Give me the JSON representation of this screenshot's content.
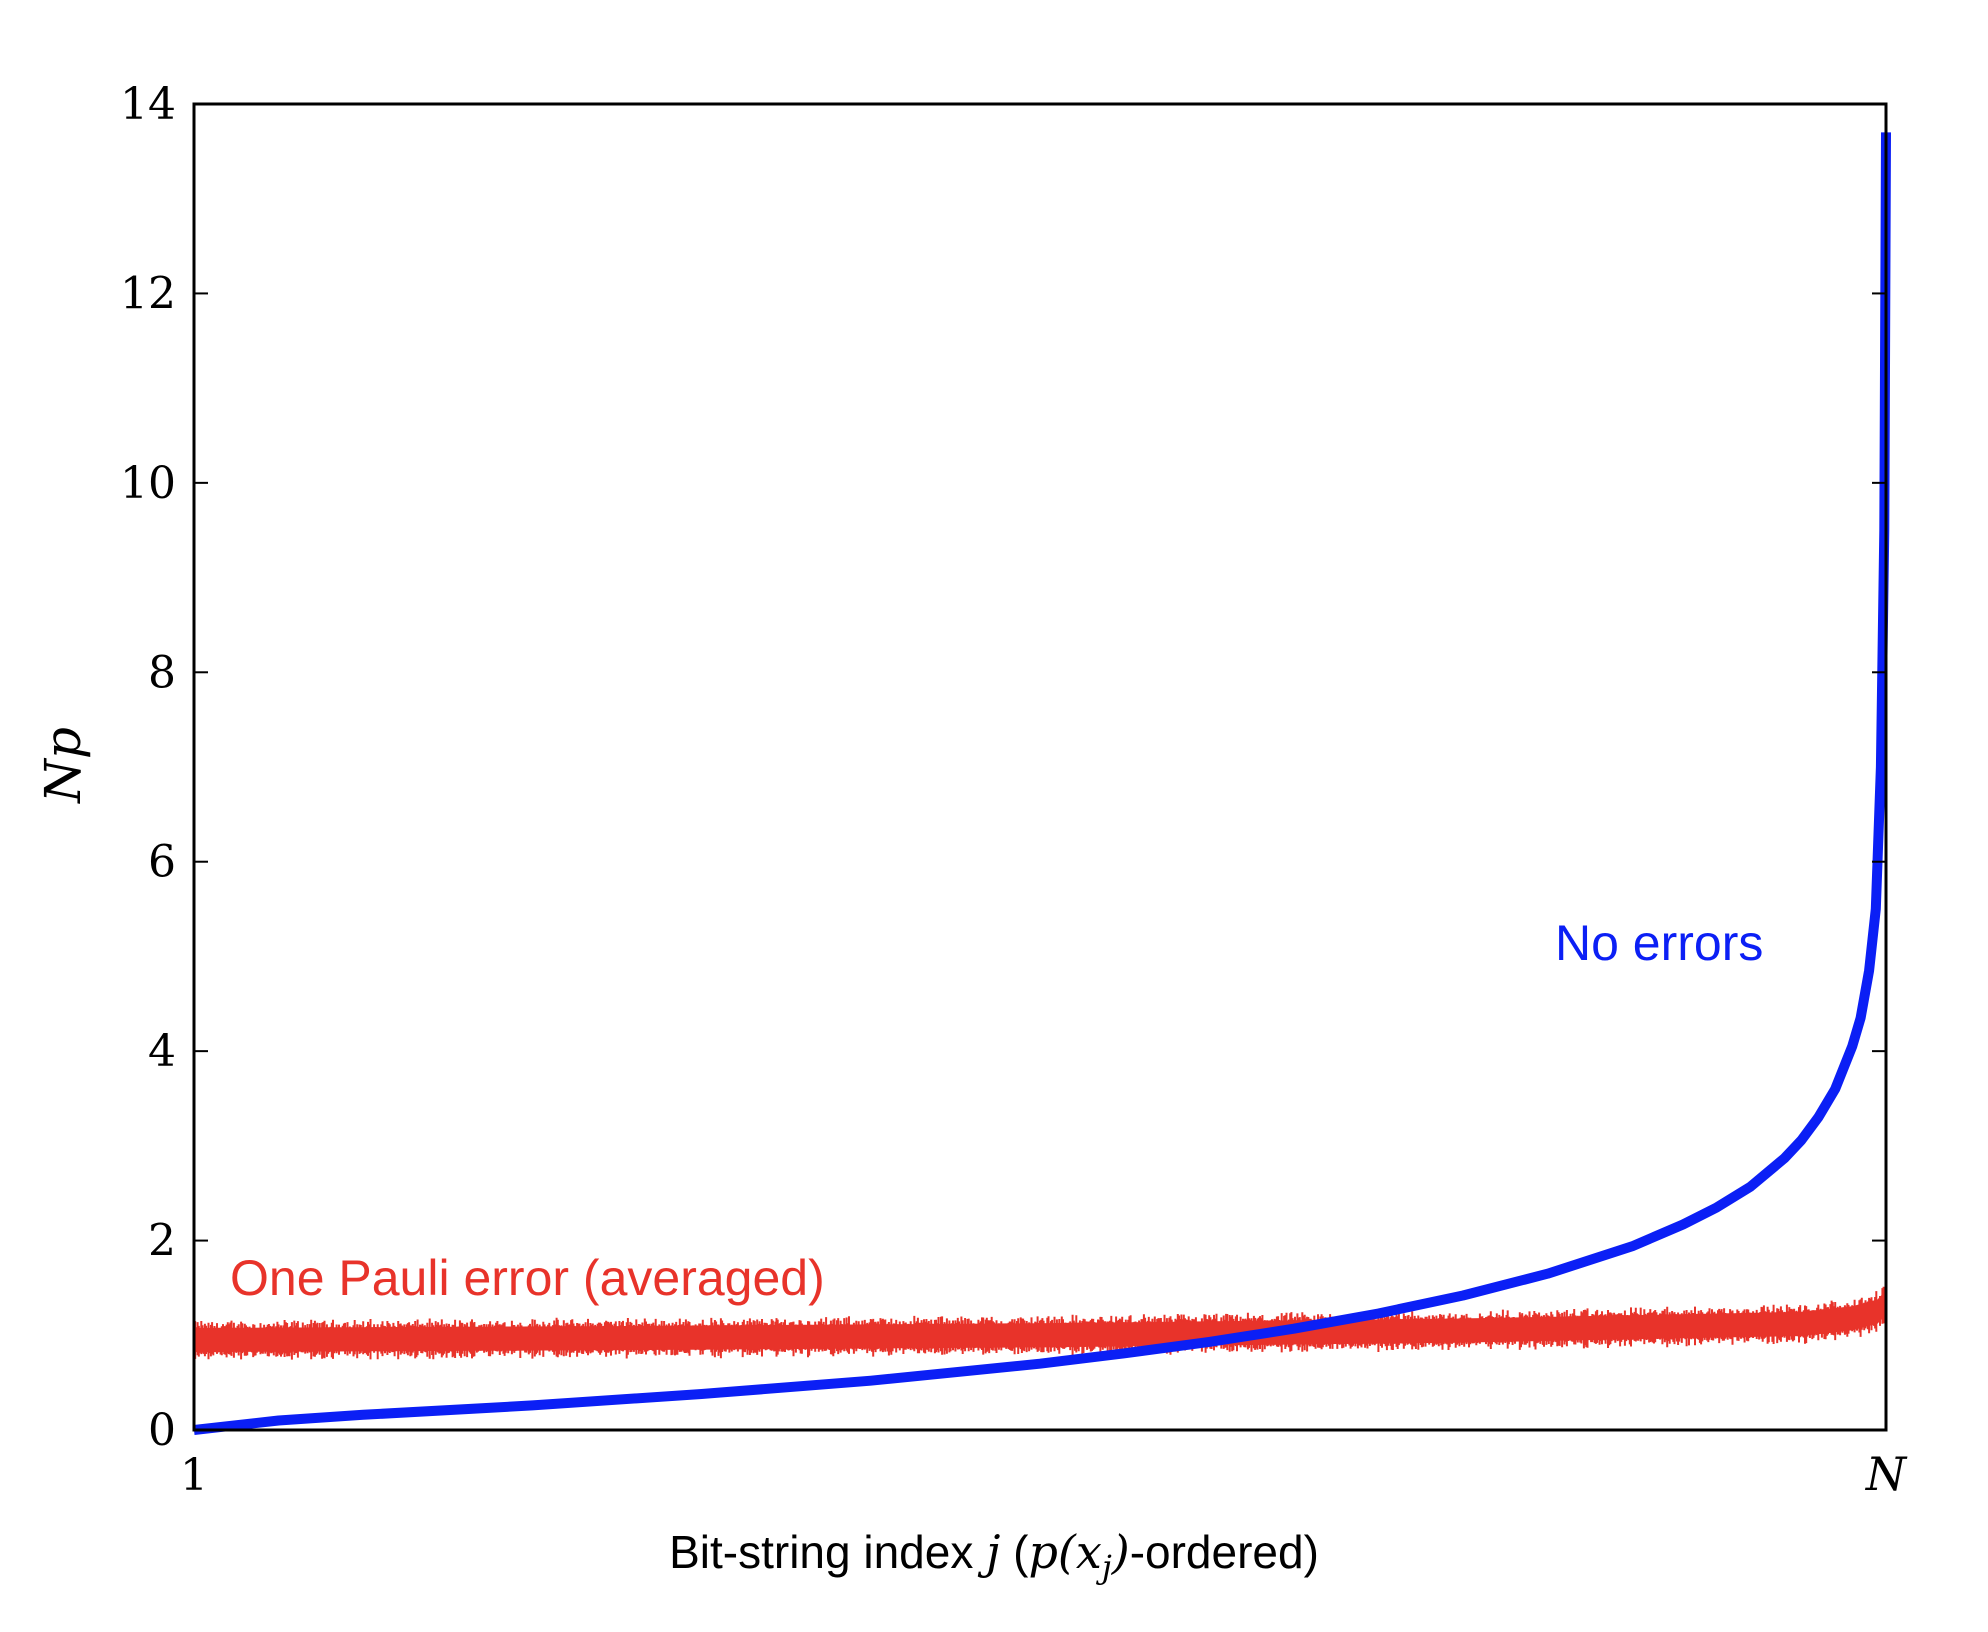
{
  "chart_data": {
    "type": "line",
    "xlabel": {
      "prefix": "Bit-string index ",
      "var": "j",
      "mid": " (",
      "math": "p(x",
      "sub": "j",
      "close": ")",
      "suffix": "-ordered)"
    },
    "ylabel": "Np",
    "xlim": [
      0,
      1
    ],
    "ylim": [
      0,
      14
    ],
    "yticks": [
      0,
      2,
      4,
      6,
      8,
      10,
      12,
      14
    ],
    "xtick_labels": [
      {
        "at": 0,
        "label": "1",
        "italic": false
      },
      {
        "at": 1,
        "label": "N",
        "italic": true
      }
    ],
    "series": [
      {
        "name": "One Pauli error (averaged)",
        "color": "#e8332a",
        "style": "noisy-band",
        "x": [
          0,
          0.25,
          0.5,
          0.75,
          0.95,
          0.98,
          0.995,
          1.0
        ],
        "y": [
          0.95,
          0.97,
          1.0,
          1.05,
          1.12,
          1.18,
          1.25,
          1.35
        ],
        "spread": 0.17
      },
      {
        "name": "No errors",
        "color": "#0b1ff5",
        "style": "line",
        "x": [
          0,
          0.05,
          0.1,
          0.2,
          0.3,
          0.4,
          0.5,
          0.55,
          0.6,
          0.65,
          0.7,
          0.75,
          0.8,
          0.85,
          0.88,
          0.9,
          0.92,
          0.94,
          0.95,
          0.96,
          0.97,
          0.98,
          0.985,
          0.99,
          0.994,
          0.997,
          0.999,
          1.0
        ],
        "y": [
          0.0,
          0.1,
          0.16,
          0.26,
          0.38,
          0.52,
          0.7,
          0.81,
          0.93,
          1.07,
          1.23,
          1.42,
          1.65,
          1.94,
          2.17,
          2.35,
          2.57,
          2.87,
          3.06,
          3.3,
          3.6,
          4.05,
          4.35,
          4.85,
          5.5,
          7.0,
          9.5,
          13.7
        ]
      }
    ]
  }
}
